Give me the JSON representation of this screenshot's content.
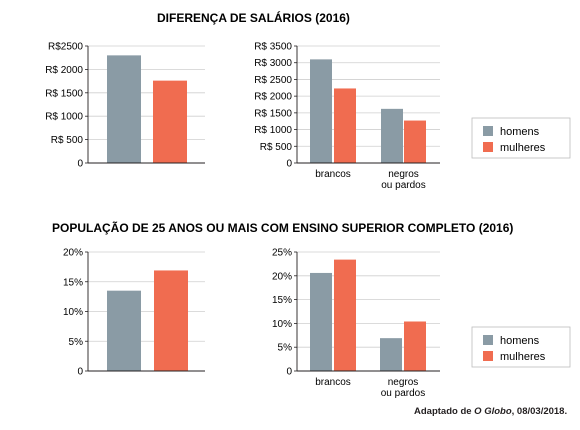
{
  "colors": {
    "homens": "#8a9ba5",
    "mulheres": "#f06c50",
    "grid": "#cfcfcf",
    "axis": "#231f20"
  },
  "sections": [
    {
      "title": "DIFERENÇA DE SALÁRIOS (2016)"
    },
    {
      "title": "POPULAÇÃO DE 25 ANOS OU MAIS COM ENSINO SUPERIOR COMPLETO (2016)"
    }
  ],
  "legend": [
    "homens",
    "mulheres"
  ],
  "source": {
    "prefix": "Adaptado de ",
    "publication": "O Globo",
    "suffix": ", 08/03/2018."
  },
  "chart_data": [
    {
      "type": "bar",
      "title": "",
      "ylim": [
        0,
        2500
      ],
      "yticks": [
        0,
        500,
        1000,
        1500,
        2000,
        2500
      ],
      "ytick_labels": [
        "0",
        "R$ 500",
        "R$ 1000",
        "R$ 1500",
        "R$ 2000",
        "R$2500"
      ],
      "grid": true,
      "categories": [
        ""
      ],
      "series": [
        {
          "name": "homens",
          "values": [
            2300
          ]
        },
        {
          "name": "mulheres",
          "values": [
            1760
          ]
        }
      ]
    },
    {
      "type": "bar",
      "title": "",
      "ylim": [
        0,
        3500
      ],
      "yticks": [
        0,
        500,
        1000,
        1500,
        2000,
        2500,
        3000,
        3500
      ],
      "ytick_labels": [
        "0",
        "R$ 500",
        "R$ 1000",
        "R$ 1500",
        "R$ 2000",
        "R$ 2500",
        "R$ 3000",
        "R$ 3500"
      ],
      "grid": true,
      "categories": [
        "brancos",
        "negros\nou pardos"
      ],
      "series": [
        {
          "name": "homens",
          "values": [
            3100,
            1620
          ]
        },
        {
          "name": "mulheres",
          "values": [
            2230,
            1270
          ]
        }
      ],
      "legend_placement": "right"
    },
    {
      "type": "bar",
      "title": "",
      "ylim": [
        0,
        20
      ],
      "yticks": [
        0,
        5,
        10,
        15,
        20
      ],
      "ytick_labels": [
        "0",
        "5%",
        "10%",
        "15%",
        "20%"
      ],
      "grid": true,
      "categories": [
        ""
      ],
      "series": [
        {
          "name": "homens",
          "values": [
            13.5
          ]
        },
        {
          "name": "mulheres",
          "values": [
            16.9
          ]
        }
      ]
    },
    {
      "type": "bar",
      "title": "",
      "ylim": [
        0,
        25
      ],
      "yticks": [
        0,
        5,
        10,
        15,
        20,
        25
      ],
      "ytick_labels": [
        "0",
        "5%",
        "10%",
        "15%",
        "20%",
        "25%"
      ],
      "grid": true,
      "categories": [
        "brancos",
        "negros\nou pardos"
      ],
      "series": [
        {
          "name": "homens",
          "values": [
            20.6,
            6.9
          ]
        },
        {
          "name": "mulheres",
          "values": [
            23.4,
            10.4
          ]
        }
      ],
      "legend_placement": "right"
    }
  ]
}
